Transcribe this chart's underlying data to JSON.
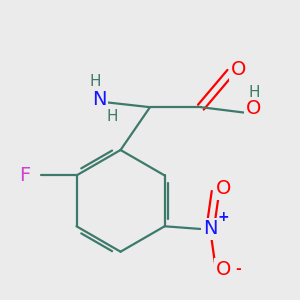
{
  "background_color": "#ebebeb",
  "bond_color": "#3d7a6b",
  "atom_colors": {
    "N": "#1515ff",
    "O": "#ff0000",
    "F": "#cc44cc",
    "H": "#3d7a6b",
    "C": "#3d7a6b"
  },
  "font_size_atoms": 14,
  "font_size_small": 11,
  "font_size_charge": 10
}
